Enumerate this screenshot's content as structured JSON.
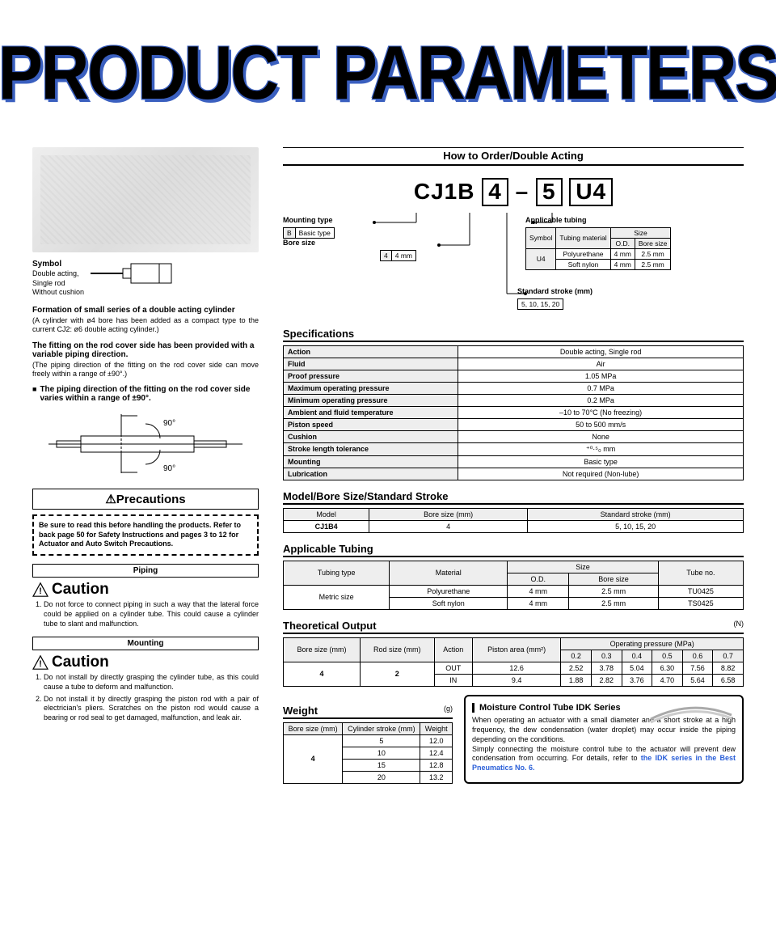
{
  "title": "PRODUCT PARAMETERS",
  "symbol": {
    "heading": "Symbol",
    "lines": "Double acting,\nSingle rod\nWithout cushion"
  },
  "leftFeatures": {
    "f1b": "Formation of small series of a double acting cylinder",
    "f1p": "(A cylinder with ø4 bore has been added as a compact type to the current CJ2: ø6 double acting cylinder.)",
    "f2b": "The fitting on the rod cover side has been provided with a variable piping direction.",
    "f2p": "(The piping direction of the fitting on the rod cover side can move freely within a range of ±90°.)",
    "bullet": "The piping direction of the fitting on the rod cover side varies within a range of ±90°."
  },
  "precautions": {
    "title": "⚠Precautions",
    "note": "Be sure to read this before handling the products. Refer to back page 50 for Safety Instructions and pages 3 to 12 for Actuator and Auto Switch Precautions."
  },
  "piping": {
    "label": "Piping",
    "caution": "Caution",
    "items": [
      "Do not force to connect piping in such a way that the lateral force could be applied on a cylinder tube. This could cause a cylinder tube to slant and malfunction."
    ]
  },
  "mounting": {
    "label": "Mounting",
    "caution": "Caution",
    "items": [
      "Do not install by directly grasping the cylinder tube, as this could cause a tube to deform and malfunction.",
      "Do not install it by directly grasping the piston rod with a pair of electrician's pliers. Scratches on the piston rod would cause a bearing or rod seal to get damaged, malfunction, and leak air."
    ]
  },
  "order": {
    "title": "How to Order/Double Acting",
    "prefix": "CJ1B",
    "p1": "4",
    "dash": "–",
    "p2": "5",
    "p3": "U4"
  },
  "pz": {
    "mt": {
      "label": "Mounting type",
      "sym": "B",
      "val": "Basic type"
    },
    "bs": {
      "label": "Bore size",
      "sym": "4",
      "val": "4 mm"
    },
    "at": {
      "label": "Applicable tubing",
      "sym": "U4",
      "rows": [
        [
          "Polyurethane",
          "4 mm",
          "2.5 mm"
        ],
        [
          "Soft nylon",
          "4 mm",
          "2.5 mm"
        ]
      ],
      "h": [
        "Symbol",
        "Tubing material",
        "O.D.",
        "Bore size"
      ],
      "sizeh": "Size"
    },
    "ss": {
      "label": "Standard stroke (mm)",
      "val": "5, 10, 15, 20"
    }
  },
  "specs": {
    "title": "Specifications",
    "rows": [
      [
        "Action",
        "Double acting, Single rod"
      ],
      [
        "Fluid",
        "Air"
      ],
      [
        "Proof pressure",
        "1.05 MPa"
      ],
      [
        "Maximum operating pressure",
        "0.7 MPa"
      ],
      [
        "Minimum operating pressure",
        "0.2 MPa"
      ],
      [
        "Ambient and fluid temperature",
        "–10 to 70°C (No freezing)"
      ],
      [
        "Piston speed",
        "50 to 500 mm/s"
      ],
      [
        "Cushion",
        "None"
      ],
      [
        "Stroke length tolerance",
        "⁺⁰·⁵₀ mm"
      ],
      [
        "Mounting",
        "Basic type"
      ],
      [
        "Lubrication",
        "Not required (Non-lube)"
      ]
    ]
  },
  "mbss": {
    "title": "Model/Bore Size/Standard Stroke",
    "head": [
      "Model",
      "Bore size (mm)",
      "Standard stroke (mm)"
    ],
    "row": [
      "CJ1B4",
      "4",
      "5, 10, 15, 20"
    ]
  },
  "apptube": {
    "title": "Applicable Tubing",
    "head": [
      "Tubing type",
      "Material",
      "O.D.",
      "Bore size",
      "Tube no."
    ],
    "sizeh": "Size",
    "rows": [
      [
        "Metric size",
        "Polyurethane",
        "4 mm",
        "2.5 mm",
        "TU0425"
      ],
      [
        "",
        "Soft nylon",
        "4 mm",
        "2.5 mm",
        "TS0425"
      ]
    ]
  },
  "theo": {
    "title": "Theoretical Output",
    "unit": "(N)",
    "head": [
      "Bore size (mm)",
      "Rod size (mm)",
      "Action",
      "Piston area (mm²)",
      "0.2",
      "0.3",
      "0.4",
      "0.5",
      "0.6",
      "0.7"
    ],
    "oph": "Operating pressure (MPa)",
    "rows": [
      [
        "4",
        "2",
        "OUT",
        "12.6",
        "2.52",
        "3.78",
        "5.04",
        "6.30",
        "7.56",
        "8.82"
      ],
      [
        "",
        "",
        "IN",
        "9.4",
        "1.88",
        "2.82",
        "3.76",
        "4.70",
        "5.64",
        "6.58"
      ]
    ]
  },
  "weight": {
    "title": "Weight",
    "unit": "(g)",
    "head": [
      "Bore size (mm)",
      "Cylinder stroke (mm)",
      "Weight"
    ],
    "rows": [
      [
        "4",
        "5",
        "12.0"
      ],
      [
        "",
        "10",
        "12.4"
      ],
      [
        "",
        "15",
        "12.8"
      ],
      [
        "",
        "20",
        "13.2"
      ]
    ]
  },
  "moist": {
    "title": "Moisture Control Tube IDK Series",
    "p1": "When operating an actuator with a small diameter and a short stroke at a high frequency, the dew condensation (water droplet) may occur inside the piping depending on the conditions.",
    "p2": "Simply connecting the moisture control tube to the actuator will prevent dew condensation from occurring. For details, refer to ",
    "link": "the IDK series in the Best Pneumatics No. 6."
  }
}
